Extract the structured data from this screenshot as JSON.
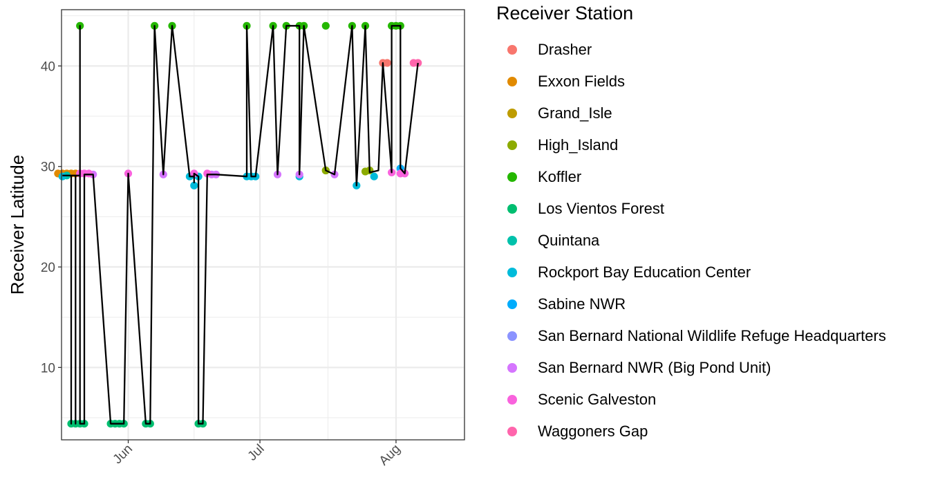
{
  "chart_data": {
    "type": "scatter",
    "ylabel": "Receiver Latitude",
    "xlabel": "",
    "x_ticks": [
      {
        "label": "Jun",
        "day": 152
      },
      {
        "label": "Jul",
        "day": 182
      },
      {
        "label": "Aug",
        "day": 213
      }
    ],
    "y_ticks": [
      10,
      20,
      30,
      40
    ],
    "xlim_day": [
      136.8,
      228.6
    ],
    "ylim": [
      2.8,
      45.6
    ],
    "grid": true,
    "legend": {
      "title": "Receiver Station",
      "placement": "right",
      "entries": [
        {
          "name": "Drasher",
          "color": "#F8766D"
        },
        {
          "name": "Exxon Fields",
          "color": "#E18A00"
        },
        {
          "name": "Grand_Isle",
          "color": "#BE9C00"
        },
        {
          "name": "High_Island",
          "color": "#8CAB00"
        },
        {
          "name": "Koffler",
          "color": "#24B700"
        },
        {
          "name": "Los Vientos Forest",
          "color": "#00BE70"
        },
        {
          "name": "Quintana",
          "color": "#00C1AB"
        },
        {
          "name": "Rockport Bay Education Center",
          "color": "#00BBDA"
        },
        {
          "name": "Sabine NWR",
          "color": "#00ACFC"
        },
        {
          "name": "San Bernard National Wildlife Refuge Headquarters",
          "color": "#8B93FF"
        },
        {
          "name": "San Bernard NWR (Big Pond Unit)",
          "color": "#D575FE"
        },
        {
          "name": "Scenic Galveston",
          "color": "#F962DD"
        },
        {
          "name": "Waggoners Gap",
          "color": "#FF65AC"
        }
      ]
    },
    "series": [
      {
        "name": "Drasher",
        "points": [
          [
            "2024-07-28",
            40.3
          ],
          [
            "2024-07-29",
            40.3
          ]
        ]
      },
      {
        "name": "Exxon Fields",
        "points": [
          [
            "2024-05-15",
            29.3
          ],
          [
            "2024-05-16",
            29.3
          ],
          [
            "2024-05-17",
            29.3
          ],
          [
            "2024-05-18",
            29.3
          ],
          [
            "2024-05-19",
            29.3
          ]
        ]
      },
      {
        "name": "Grand_Isle",
        "points": [
          [
            "2024-07-15",
            29.6
          ]
        ]
      },
      {
        "name": "High_Island",
        "points": [
          [
            "2024-07-15",
            29.6
          ],
          [
            "2024-07-24",
            29.5
          ],
          [
            "2024-07-25",
            29.6
          ]
        ]
      },
      {
        "name": "Koffler",
        "points": [
          [
            "2024-05-20",
            44.0
          ],
          [
            "2024-06-06",
            44.0
          ],
          [
            "2024-06-10",
            44.0
          ],
          [
            "2024-06-27",
            44.0
          ],
          [
            "2024-07-03",
            44.0
          ],
          [
            "2024-07-06",
            44.0
          ],
          [
            "2024-07-09",
            44.0
          ],
          [
            "2024-07-10",
            44.0
          ],
          [
            "2024-07-15",
            44.0
          ],
          [
            "2024-07-21",
            44.0
          ],
          [
            "2024-07-24",
            44.0
          ],
          [
            "2024-07-30",
            44.0
          ],
          [
            "2024-07-31",
            44.0
          ],
          [
            "2024-08-01",
            44.0
          ]
        ]
      },
      {
        "name": "Los Vientos Forest",
        "points": [
          [
            "2024-05-18",
            4.4
          ],
          [
            "2024-05-19",
            4.4
          ],
          [
            "2024-05-20",
            4.4
          ],
          [
            "2024-05-21",
            4.4
          ],
          [
            "2024-05-27",
            4.4
          ],
          [
            "2024-05-28",
            4.4
          ],
          [
            "2024-05-29",
            4.4
          ],
          [
            "2024-05-30",
            4.4
          ],
          [
            "2024-06-04",
            4.4
          ],
          [
            "2024-06-05",
            4.4
          ],
          [
            "2024-06-16",
            4.4
          ],
          [
            "2024-06-17",
            4.4
          ]
        ]
      },
      {
        "name": "Quintana",
        "points": [
          [
            "2024-05-17",
            29.1
          ]
        ]
      },
      {
        "name": "Rockport Bay Education Center",
        "points": [
          [
            "2024-05-16",
            29.0
          ],
          [
            "2024-06-14",
            29.0
          ],
          [
            "2024-06-15",
            28.1
          ],
          [
            "2024-06-16",
            29.0
          ],
          [
            "2024-06-27",
            29.0
          ],
          [
            "2024-06-28",
            29.0
          ],
          [
            "2024-06-29",
            29.0
          ],
          [
            "2024-07-09",
            29.0
          ],
          [
            "2024-07-22",
            28.1
          ],
          [
            "2024-07-26",
            29.0
          ]
        ]
      },
      {
        "name": "Sabine NWR",
        "points": [
          [
            "2024-08-01",
            29.8
          ]
        ]
      },
      {
        "name": "San Bernard National Wildlife Refuge Headquarters",
        "points": []
      },
      {
        "name": "San Bernard NWR (Big Pond Unit)",
        "points": [
          [
            "2024-05-23",
            29.2
          ],
          [
            "2024-06-08",
            29.2
          ],
          [
            "2024-06-19",
            29.2
          ],
          [
            "2024-06-20",
            29.2
          ],
          [
            "2024-07-04",
            29.2
          ],
          [
            "2024-07-09",
            29.2
          ],
          [
            "2024-07-17",
            29.2
          ]
        ]
      },
      {
        "name": "Scenic Galveston",
        "points": [
          [
            "2024-05-20",
            29.3
          ],
          [
            "2024-05-21",
            29.3
          ],
          [
            "2024-05-22",
            29.3
          ],
          [
            "2024-05-31",
            29.3
          ],
          [
            "2024-06-15",
            29.3
          ],
          [
            "2024-06-18",
            29.3
          ],
          [
            "2024-07-30",
            29.4
          ],
          [
            "2024-08-01",
            29.3
          ],
          [
            "2024-08-02",
            29.3
          ]
        ]
      },
      {
        "name": "Waggoners Gap",
        "points": [
          [
            "2024-08-04",
            40.3
          ],
          [
            "2024-08-05",
            40.3
          ]
        ]
      }
    ],
    "path": [
      [
        "2024-05-16",
        29.1
      ],
      [
        "2024-05-18",
        29.1
      ],
      [
        "2024-05-18",
        4.4
      ],
      [
        "2024-05-18",
        29.1
      ],
      [
        "2024-05-19",
        29.1
      ],
      [
        "2024-05-19",
        4.4
      ],
      [
        "2024-05-19",
        29.1
      ],
      [
        "2024-05-20",
        29.1
      ],
      [
        "2024-05-20",
        4.4
      ],
      [
        "2024-05-20",
        44.0
      ],
      [
        "2024-05-20",
        4.4
      ],
      [
        "2024-05-21",
        4.4
      ],
      [
        "2024-05-21",
        29.2
      ],
      [
        "2024-05-23",
        29.2
      ],
      [
        "2024-05-27",
        4.4
      ],
      [
        "2024-05-30",
        4.4
      ],
      [
        "2024-05-31",
        29.3
      ],
      [
        "2024-06-04",
        4.4
      ],
      [
        "2024-06-05",
        4.4
      ],
      [
        "2024-06-06",
        44.0
      ],
      [
        "2024-06-08",
        29.2
      ],
      [
        "2024-06-10",
        44.0
      ],
      [
        "2024-06-14",
        29.0
      ],
      [
        "2024-06-15",
        29.0
      ],
      [
        "2024-06-15",
        28.4
      ],
      [
        "2024-06-15",
        29.3
      ],
      [
        "2024-06-16",
        29.0
      ],
      [
        "2024-06-16",
        4.4
      ],
      [
        "2024-06-17",
        4.4
      ],
      [
        "2024-06-18",
        29.2
      ],
      [
        "2024-06-20",
        29.2
      ],
      [
        "2024-06-27",
        29.0
      ],
      [
        "2024-06-27",
        44.0
      ],
      [
        "2024-06-28",
        29.0
      ],
      [
        "2024-06-29",
        29.0
      ],
      [
        "2024-07-03",
        44.0
      ],
      [
        "2024-07-04",
        29.2
      ],
      [
        "2024-07-06",
        44.0
      ],
      [
        "2024-07-09",
        44.0
      ],
      [
        "2024-07-09",
        29.2
      ],
      [
        "2024-07-10",
        44.0
      ],
      [
        "2024-07-15",
        29.6
      ],
      [
        "2024-07-17",
        29.2
      ],
      [
        "2024-07-21",
        44.0
      ],
      [
        "2024-07-22",
        28.1
      ],
      [
        "2024-07-24",
        44.0
      ],
      [
        "2024-07-25",
        29.4
      ],
      [
        "2024-07-27",
        29.6
      ],
      [
        "2024-07-28",
        40.3
      ],
      [
        "2024-07-30",
        29.4
      ],
      [
        "2024-07-30",
        44.0
      ],
      [
        "2024-07-31",
        44.0
      ],
      [
        "2024-08-01",
        44.0
      ],
      [
        "2024-08-01",
        29.8
      ],
      [
        "2024-08-02",
        29.3
      ],
      [
        "2024-08-05",
        40.3
      ]
    ]
  }
}
